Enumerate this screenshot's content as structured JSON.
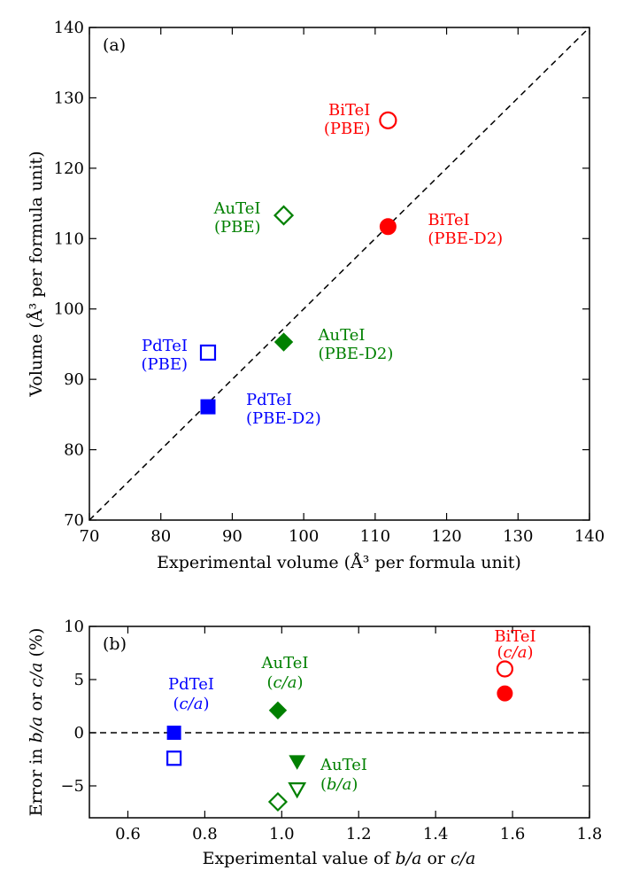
{
  "chart_data": [
    {
      "type": "scatter",
      "panel_label": "(a)",
      "xlabel": "Experimental volume (Å³ per formula unit)",
      "ylabel": "Volume (Å³ per formula unit)",
      "xlim": [
        70,
        140
      ],
      "ylim": [
        70,
        140
      ],
      "xticks": [
        70,
        80,
        90,
        100,
        110,
        120,
        130,
        140
      ],
      "yticks": [
        70,
        80,
        90,
        100,
        110,
        120,
        130,
        140
      ],
      "reference_line": "y = x (dashed)",
      "points": [
        {
          "name": "BiTeI PBE",
          "x": 111.8,
          "y": 126.8,
          "marker": "circle",
          "filled": false,
          "color": "#ff0000",
          "label_lines": [
            "BiTeI",
            "(PBE)"
          ]
        },
        {
          "name": "BiTeI PBE-D2",
          "x": 111.8,
          "y": 111.7,
          "marker": "circle",
          "filled": true,
          "color": "#ff0000",
          "label_lines": [
            "BiTeI",
            "(PBE-D2)"
          ]
        },
        {
          "name": "AuTeI PBE",
          "x": 97.2,
          "y": 113.3,
          "marker": "diamond",
          "filled": false,
          "color": "#008000",
          "label_lines": [
            "AuTeI",
            "(PBE)"
          ]
        },
        {
          "name": "AuTeI PBE-D2",
          "x": 97.2,
          "y": 95.3,
          "marker": "diamond",
          "filled": true,
          "color": "#008000",
          "label_lines": [
            "AuTeI",
            "(PBE-D2)"
          ]
        },
        {
          "name": "PdTeI PBE",
          "x": 86.6,
          "y": 93.8,
          "marker": "square",
          "filled": false,
          "color": "#0000ff",
          "label_lines": [
            "PdTeI",
            "(PBE)"
          ]
        },
        {
          "name": "PdTeI PBE-D2",
          "x": 86.6,
          "y": 86.1,
          "marker": "square",
          "filled": true,
          "color": "#0000ff",
          "label_lines": [
            "PdTeI",
            "(PBE-D2)"
          ]
        }
      ]
    },
    {
      "type": "scatter",
      "panel_label": "(b)",
      "xlabel_parts": [
        "Experimental value of ",
        "b/a",
        " or ",
        "c/a"
      ],
      "ylabel_parts": [
        "Error in ",
        "b/a",
        " or ",
        "c/a",
        " (%)"
      ],
      "xlim": [
        0.5,
        1.8
      ],
      "ylim": [
        -8,
        10
      ],
      "xticks": [
        "0.6",
        "0.8",
        "1.0",
        "1.2",
        "1.4",
        "1.6",
        "1.8"
      ],
      "xtick_values": [
        0.6,
        0.8,
        1.0,
        1.2,
        1.4,
        1.6,
        1.8
      ],
      "yticks": [
        "−5",
        "0",
        "5",
        "10"
      ],
      "ytick_values": [
        -5,
        0,
        5,
        10
      ],
      "reference_line": "y = 0 (dashed)",
      "points": [
        {
          "name": "PdTeI c/a PBE-D2",
          "x": 0.72,
          "y": 0.0,
          "marker": "square",
          "filled": true,
          "color": "#0000ff"
        },
        {
          "name": "PdTeI c/a PBE",
          "x": 0.72,
          "y": -2.4,
          "marker": "square",
          "filled": false,
          "color": "#0000ff"
        },
        {
          "name": "AuTeI c/a PBE-D2",
          "x": 0.99,
          "y": 2.1,
          "marker": "diamond",
          "filled": true,
          "color": "#008000"
        },
        {
          "name": "AuTeI c/a PBE",
          "x": 0.99,
          "y": -6.5,
          "marker": "diamond",
          "filled": false,
          "color": "#008000"
        },
        {
          "name": "AuTeI b/a PBE-D2",
          "x": 1.04,
          "y": -2.7,
          "marker": "triangle-down",
          "filled": true,
          "color": "#008000"
        },
        {
          "name": "AuTeI b/a PBE",
          "x": 1.04,
          "y": -5.3,
          "marker": "triangle-down",
          "filled": false,
          "color": "#008000"
        },
        {
          "name": "BiTeI c/a PBE",
          "x": 1.58,
          "y": 6.0,
          "marker": "circle",
          "filled": false,
          "color": "#ff0000"
        },
        {
          "name": "BiTeI c/a PBE-D2",
          "x": 1.58,
          "y": 3.7,
          "marker": "circle",
          "filled": true,
          "color": "#ff0000"
        }
      ],
      "annotations": [
        {
          "title": "PdTeI",
          "sub": "c/a",
          "color": "#0000ff"
        },
        {
          "title": "AuTeI",
          "sub": "c/a",
          "color": "#008000"
        },
        {
          "title": "AuTeI",
          "sub": "b/a",
          "color": "#008000"
        },
        {
          "title": "BiTeI",
          "sub": "c/a",
          "color": "#ff0000"
        }
      ]
    }
  ]
}
